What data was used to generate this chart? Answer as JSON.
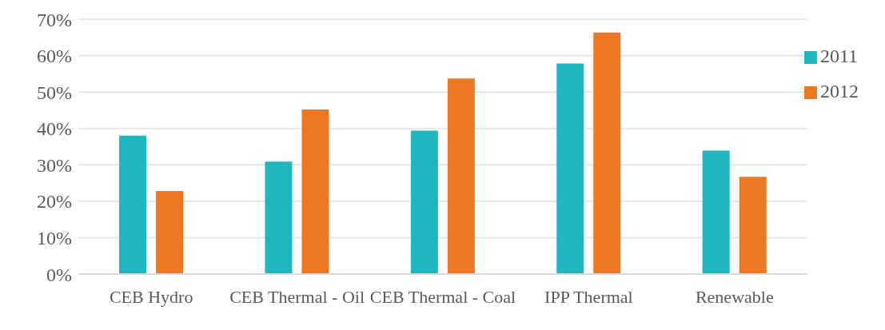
{
  "chart_data": {
    "type": "bar",
    "categories": [
      "CEB Hydro",
      "CEB Thermal - Oil",
      "CEB Thermal - Coal",
      "IPP Thermal",
      "Renewable"
    ],
    "series": [
      {
        "name": "2011",
        "color": "#1fb7bf",
        "values": [
          38,
          30.9,
          39.4,
          57.8,
          33.9
        ]
      },
      {
        "name": "2012",
        "color": "#ee7722",
        "values": [
          22.8,
          45.2,
          53.7,
          66.3,
          26.7
        ]
      }
    ],
    "ylim": [
      0,
      70
    ],
    "yticks": [
      {
        "value": 0,
        "label": "0%"
      },
      {
        "value": 10,
        "label": "10%"
      },
      {
        "value": 20,
        "label": "20%"
      },
      {
        "value": 30,
        "label": "30%"
      },
      {
        "value": 40,
        "label": "40%"
      },
      {
        "value": 50,
        "label": "50%"
      },
      {
        "value": 60,
        "label": "60%"
      },
      {
        "value": 70,
        "label": "70%"
      }
    ],
    "grid": "y",
    "legend": "top right"
  }
}
